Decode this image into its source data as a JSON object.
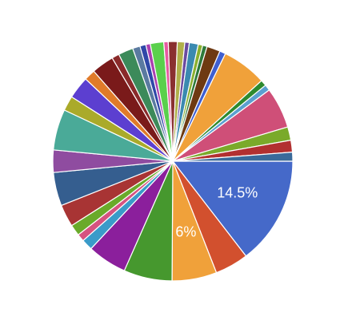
{
  "chart_data": {
    "type": "pie",
    "start_angle_deg": 0,
    "direction": "clockwise",
    "slice_stroke": "#ffffff",
    "slices": [
      {
        "value": 14.5,
        "color": "#4569c9",
        "label": "14.5%"
      },
      {
        "value": 4.5,
        "color": "#d2502e"
      },
      {
        "value": 6.0,
        "color": "#f0a13a",
        "label": "6%"
      },
      {
        "value": 6.5,
        "color": "#46982e"
      },
      {
        "value": 5.3,
        "color": "#8b1f9c"
      },
      {
        "value": 1.5,
        "color": "#3a9bc9"
      },
      {
        "value": 1.0,
        "color": "#d65380"
      },
      {
        "value": 1.5,
        "color": "#6aaa2a"
      },
      {
        "value": 3.0,
        "color": "#a83434"
      },
      {
        "value": 4.5,
        "color": "#355e8f"
      },
      {
        "value": 3.0,
        "color": "#8f4ca0"
      },
      {
        "value": 5.5,
        "color": "#4aaa98"
      },
      {
        "value": 2.0,
        "color": "#aaaa2a"
      },
      {
        "value": 3.0,
        "color": "#5c3fd0"
      },
      {
        "value": 1.5,
        "color": "#e07b2a"
      },
      {
        "value": 3.0,
        "color": "#7a1a1a"
      },
      {
        "value": 1.0,
        "color": "#8a2a2a"
      },
      {
        "value": 2.0,
        "color": "#3c8a5a"
      },
      {
        "value": 1.0,
        "color": "#5a7aa0"
      },
      {
        "value": 0.8,
        "color": "#2f48a8"
      },
      {
        "value": 0.6,
        "color": "#aa40b0"
      },
      {
        "value": 1.8,
        "color": "#5ad04c"
      },
      {
        "value": 0.6,
        "color": "#e65aa0"
      },
      {
        "value": 1.2,
        "color": "#8a3030"
      },
      {
        "value": 1.0,
        "color": "#b0b04a"
      },
      {
        "value": 0.6,
        "color": "#6a4aa0"
      },
      {
        "value": 1.2,
        "color": "#3a8ab0"
      },
      {
        "value": 0.6,
        "color": "#8ab030"
      },
      {
        "value": 0.6,
        "color": "#2e7a3a"
      },
      {
        "value": 1.8,
        "color": "#6e3a12"
      },
      {
        "value": 0.8,
        "color": "#3f5fd0"
      },
      {
        "value": 6.0,
        "color": "#f0a13a"
      },
      {
        "value": 0.8,
        "color": "#2e8a2e"
      },
      {
        "value": 0.8,
        "color": "#5aa0d0"
      },
      {
        "value": 5.5,
        "color": "#cf4f78"
      },
      {
        "value": 1.8,
        "color": "#7aaa2a"
      },
      {
        "value": 1.6,
        "color": "#b23030"
      },
      {
        "value": 1.2,
        "color": "#3a6a9a"
      }
    ]
  }
}
